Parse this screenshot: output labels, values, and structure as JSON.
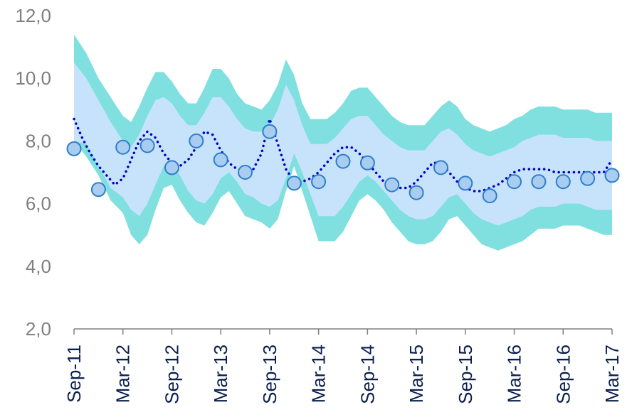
{
  "chart_data": {
    "type": "line",
    "title": "",
    "xlabel": "",
    "ylabel": "",
    "ylim": [
      2.0,
      12.0
    ],
    "y_ticks": [
      "2,0",
      "4,0",
      "6,0",
      "8,0",
      "10,0",
      "12,0"
    ],
    "y_tick_values": [
      2,
      4,
      6,
      8,
      10,
      12
    ],
    "x_tick_labels": [
      "Sep-11",
      "Mar-12",
      "Sep-12",
      "Mar-13",
      "Sep-13",
      "Mar-14",
      "Sep-14",
      "Mar-15",
      "Sep-15",
      "Mar-16",
      "Sep-16",
      "Mar-17"
    ],
    "x_tick_positions": [
      0,
      6,
      12,
      18,
      24,
      30,
      36,
      42,
      48,
      54,
      60,
      66
    ],
    "x_domain": [
      0,
      66
    ],
    "grid": false,
    "legend": "none",
    "colors": {
      "outer_band": "#7fe0df",
      "inner_band": "#c6e3fb",
      "forecast_line": "#0000cc",
      "marker_fill": "#a9cdf0",
      "marker_stroke": "#2f7dc8",
      "axis": "#7f7f7f"
    },
    "outer_band": {
      "x": [
        0,
        1.5,
        3,
        4.5,
        6,
        7,
        8,
        9,
        10,
        11,
        12,
        13,
        14,
        15,
        16,
        17,
        18,
        19,
        20,
        21,
        22,
        23,
        24,
        25,
        26,
        27,
        28,
        29,
        30,
        31,
        32,
        33,
        34,
        35,
        36,
        37,
        38,
        39,
        40,
        41,
        42,
        43,
        44,
        45,
        46,
        47,
        48,
        49,
        50,
        51,
        52,
        53,
        54,
        55,
        56,
        57,
        58,
        59,
        60,
        61,
        62,
        63,
        64,
        65,
        66
      ],
      "upper": [
        11.4,
        10.8,
        10.0,
        9.4,
        8.8,
        8.6,
        9.1,
        9.7,
        10.2,
        10.2,
        9.9,
        9.5,
        9.2,
        9.2,
        9.7,
        10.3,
        10.3,
        10.0,
        9.5,
        9.2,
        9.1,
        9.0,
        9.3,
        9.8,
        10.6,
        10.1,
        9.2,
        8.7,
        8.7,
        8.7,
        8.9,
        9.2,
        9.6,
        9.7,
        9.7,
        9.4,
        9.1,
        8.8,
        8.6,
        8.5,
        8.5,
        8.5,
        8.8,
        9.1,
        9.3,
        9.1,
        8.7,
        8.5,
        8.4,
        8.3,
        8.4,
        8.5,
        8.7,
        8.8,
        9.0,
        9.1,
        9.1,
        9.1,
        9.0,
        9.0,
        9.0,
        9.0,
        8.9,
        8.9,
        8.9
      ],
      "lower": [
        8.0,
        7.5,
        6.9,
        6.1,
        5.7,
        5.0,
        4.7,
        5.0,
        5.8,
        6.5,
        6.6,
        6.1,
        5.7,
        5.4,
        5.3,
        5.7,
        6.2,
        6.4,
        6.0,
        5.6,
        5.5,
        5.4,
        5.2,
        5.5,
        6.4,
        7.2,
        6.4,
        5.6,
        4.8,
        4.8,
        4.8,
        5.1,
        5.6,
        6.1,
        6.3,
        6.1,
        5.8,
        5.4,
        5.1,
        4.8,
        4.7,
        4.7,
        4.8,
        5.1,
        5.5,
        5.6,
        5.3,
        5.0,
        4.7,
        4.6,
        4.5,
        4.6,
        4.7,
        4.8,
        5.0,
        5.2,
        5.2,
        5.2,
        5.3,
        5.3,
        5.3,
        5.2,
        5.1,
        5.0,
        5.0
      ]
    },
    "inner_band": {
      "x": [
        0,
        1.5,
        3,
        4.5,
        6,
        7,
        8,
        9,
        10,
        11,
        12,
        13,
        14,
        15,
        16,
        17,
        18,
        19,
        20,
        21,
        22,
        23,
        24,
        25,
        26,
        27,
        28,
        29,
        30,
        31,
        32,
        33,
        34,
        35,
        36,
        37,
        38,
        39,
        40,
        41,
        42,
        43,
        44,
        45,
        46,
        47,
        48,
        49,
        50,
        51,
        52,
        53,
        54,
        55,
        56,
        57,
        58,
        59,
        60,
        61,
        62,
        63,
        64,
        65,
        66
      ],
      "upper": [
        10.5,
        10.0,
        9.3,
        8.6,
        8.0,
        7.8,
        8.2,
        8.8,
        9.3,
        9.4,
        9.2,
        8.8,
        8.5,
        8.5,
        8.9,
        9.4,
        9.4,
        9.1,
        8.7,
        8.4,
        8.3,
        8.3,
        8.5,
        9.0,
        9.8,
        9.3,
        8.5,
        7.9,
        7.9,
        7.9,
        8.1,
        8.4,
        8.7,
        8.8,
        8.8,
        8.5,
        8.2,
        8.0,
        7.8,
        7.7,
        7.7,
        7.7,
        8.0,
        8.3,
        8.4,
        8.2,
        7.9,
        7.7,
        7.6,
        7.5,
        7.6,
        7.7,
        7.8,
        8.0,
        8.1,
        8.2,
        8.2,
        8.2,
        8.1,
        8.1,
        8.1,
        8.1,
        8.0,
        8.0,
        8.0
      ],
      "lower": [
        8.0,
        7.9,
        7.2,
        6.5,
        6.2,
        5.8,
        5.6,
        6.0,
        6.6,
        7.2,
        7.3,
        6.9,
        6.4,
        6.1,
        6.0,
        6.3,
        6.8,
        7.0,
        6.7,
        6.3,
        6.2,
        6.0,
        5.9,
        6.1,
        6.8,
        7.6,
        7.0,
        6.3,
        5.6,
        5.6,
        5.6,
        5.9,
        6.3,
        6.7,
        6.9,
        6.7,
        6.4,
        6.1,
        5.8,
        5.6,
        5.5,
        5.5,
        5.6,
        5.9,
        6.2,
        6.3,
        6.0,
        5.7,
        5.5,
        5.4,
        5.3,
        5.4,
        5.5,
        5.6,
        5.8,
        5.9,
        5.9,
        5.9,
        6.0,
        6.0,
        6.0,
        5.9,
        5.8,
        5.8,
        5.8
      ]
    },
    "forecast_line": {
      "x": [
        0,
        1,
        2,
        3,
        4,
        5,
        6,
        7,
        8,
        9,
        10,
        11,
        12,
        13,
        14,
        15,
        16,
        17,
        18,
        19,
        20,
        21,
        22,
        23,
        24,
        25,
        26,
        27,
        28,
        29,
        30,
        31,
        32,
        33,
        34,
        35,
        36,
        37,
        38,
        39,
        40,
        41,
        42,
        43,
        44,
        45,
        46,
        47,
        48,
        49,
        50,
        51,
        52,
        53,
        54,
        55,
        56,
        57,
        58,
        59,
        60,
        61,
        62,
        63,
        64,
        65,
        66
      ],
      "y": [
        8.7,
        8.1,
        7.6,
        7.2,
        6.9,
        6.6,
        6.8,
        7.4,
        8.0,
        8.3,
        8.1,
        7.6,
        7.3,
        7.2,
        7.4,
        7.8,
        8.3,
        8.2,
        7.7,
        7.3,
        7.1,
        7.0,
        7.1,
        7.6,
        8.7,
        7.9,
        7.1,
        6.7,
        6.7,
        6.8,
        7.0,
        7.3,
        7.6,
        7.8,
        7.8,
        7.6,
        7.3,
        7.0,
        6.7,
        6.5,
        6.5,
        6.5,
        6.7,
        7.0,
        7.3,
        7.3,
        7.0,
        6.7,
        6.5,
        6.4,
        6.4,
        6.5,
        6.6,
        6.8,
        7.0,
        7.1,
        7.1,
        7.1,
        7.1,
        7.0,
        7.0,
        7.0,
        7.0,
        7.0,
        7.0,
        7.0,
        7.4
      ]
    },
    "series": [
      {
        "type": "scatter",
        "x": [
          0,
          3,
          6,
          9,
          12,
          15,
          18,
          21,
          24,
          27,
          30,
          33,
          36,
          39,
          42,
          45,
          48,
          51,
          54,
          57,
          60,
          63,
          66
        ],
        "values": [
          7.75,
          6.45,
          7.8,
          7.85,
          7.15,
          8.0,
          7.4,
          7.0,
          8.3,
          6.65,
          6.7,
          7.35,
          7.3,
          6.6,
          6.35,
          7.15,
          6.65,
          6.25,
          6.7,
          6.7,
          6.7,
          6.8,
          6.9
        ]
      }
    ]
  }
}
